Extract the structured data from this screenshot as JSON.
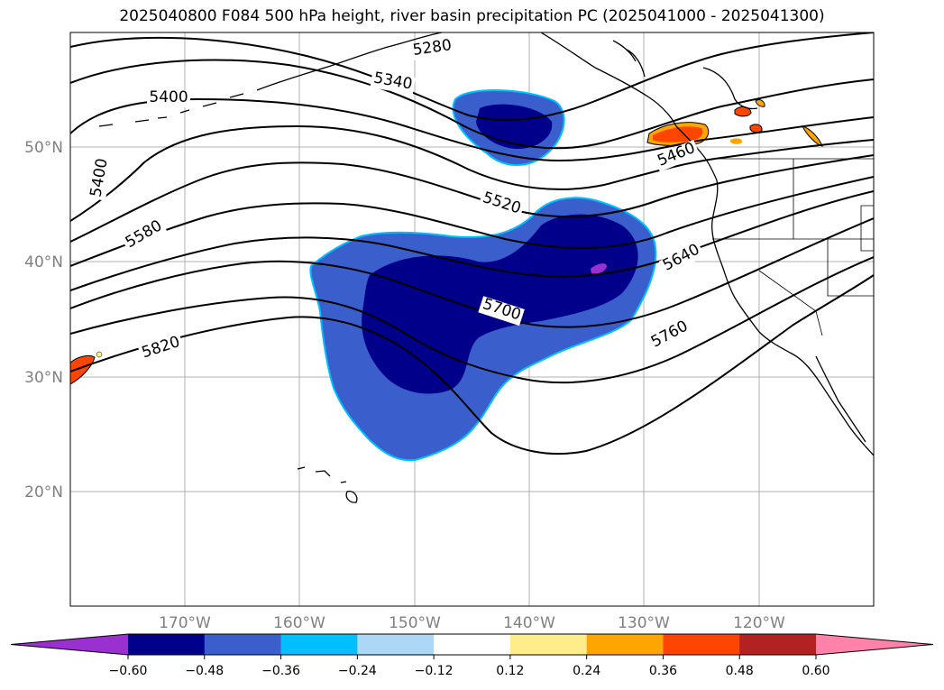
{
  "title": "2025040800 F084 500 hPa height, river basin precipitation PC (2025041000 - 2025041300)",
  "map": {
    "lat_labels": [
      "50°N",
      "40°N",
      "30°N",
      "20°N"
    ],
    "lon_labels": [
      "170°W",
      "160°W",
      "150°W",
      "140°W",
      "130°W",
      "120°W"
    ],
    "height_contour_labels": [
      "5280",
      "5340",
      "5400",
      "5400",
      "5460",
      "5520",
      "5580",
      "5640",
      "5700",
      "5760",
      "5820"
    ]
  },
  "colorbar": {
    "ticks": [
      "−0.60",
      "−0.48",
      "−0.36",
      "−0.24",
      "−0.12",
      "0.12",
      "0.24",
      "0.36",
      "0.48",
      "0.60"
    ],
    "colors": [
      "#9b30d0",
      "#00008b",
      "#3a5fcd",
      "#00bfff",
      "#add8f5",
      "#ffffff",
      "#ffec8b",
      "#ffa500",
      "#ff4500",
      "#b22222",
      "#ff82ab"
    ]
  }
}
